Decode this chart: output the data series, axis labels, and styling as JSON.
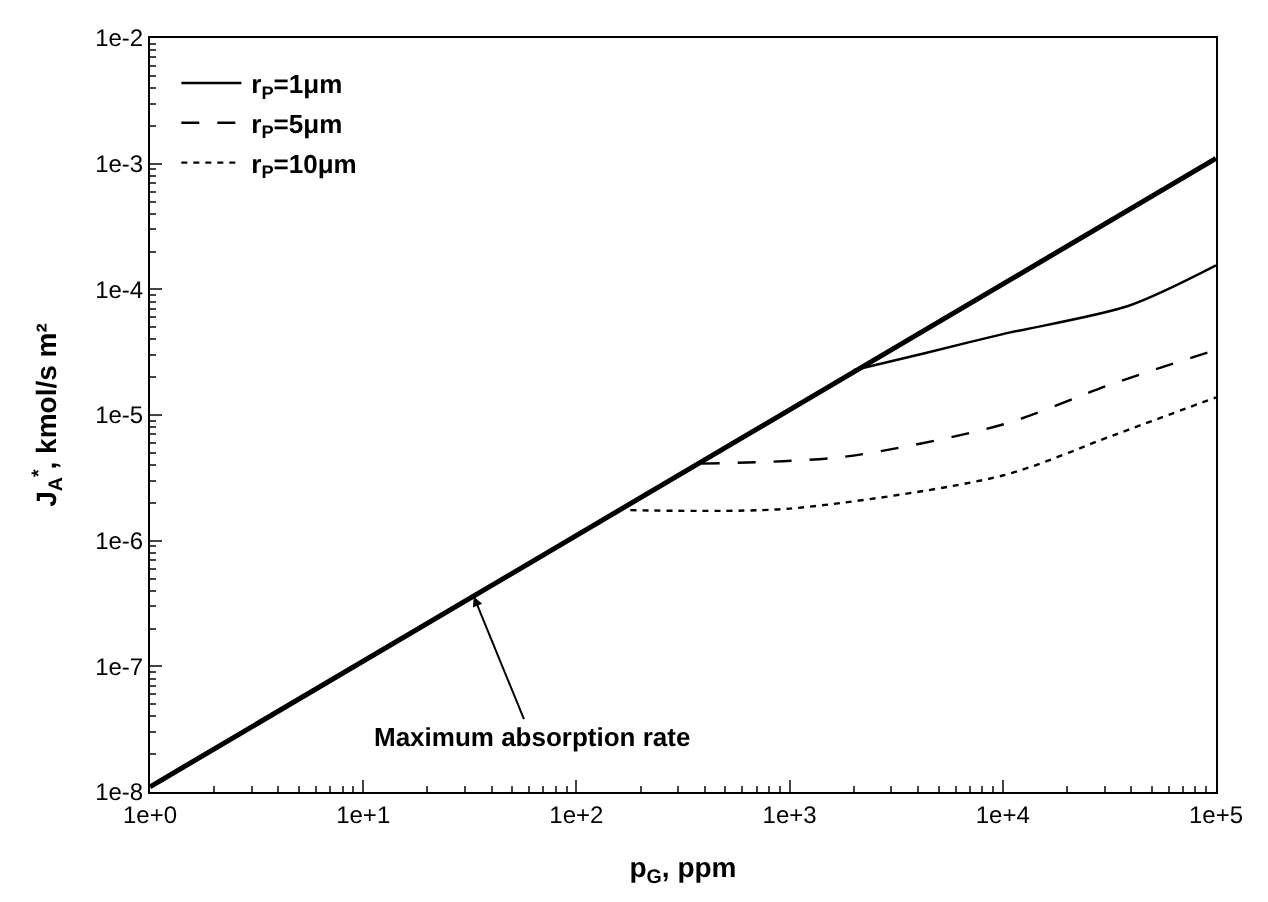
{
  "chart_data": {
    "type": "line",
    "xlabel": "p$_{G}$, ppm",
    "ylabel": "J$_{A}$$^{*}$, kmol/s m²",
    "log": "xy",
    "legend": "top left",
    "marker": "none",
    "xlim": [
      1,
      100000
    ],
    "ylim": [
      1e-08,
      0.01
    ],
    "xticks": [
      {
        "value": 1,
        "label": "1e+0"
      },
      {
        "value": 10,
        "label": "1e+1"
      },
      {
        "value": 100,
        "label": "1e+2"
      },
      {
        "value": 1000,
        "label": "1e+3"
      },
      {
        "value": 10000,
        "label": "1e+4"
      },
      {
        "value": 100000,
        "label": "1e+5"
      }
    ],
    "yticks": [
      {
        "value": 1e-08,
        "label": "1e-8"
      },
      {
        "value": 1e-07,
        "label": "1e-7"
      },
      {
        "value": 1e-06,
        "label": "1e-6"
      },
      {
        "value": 1e-05,
        "label": "1e-5"
      },
      {
        "value": 0.0001,
        "label": "1e-4"
      },
      {
        "value": 0.001,
        "label": "1e-3"
      },
      {
        "value": 0.01,
        "label": "1e-2"
      }
    ],
    "series": [
      {
        "color": "#000000",
        "line_style": "solid",
        "x": [
          1,
          100000
        ],
        "values": [
          1.1e-08,
          0.0011
        ]
      },
      {
        "name": "r$_{P}$=1μm",
        "color": "#000000",
        "line_style": "solid",
        "x": [
          1990,
          4300,
          10000,
          39000,
          100000
        ],
        "values": [
          2.27e-05,
          3.1e-05,
          4.4e-05,
          7.4e-05,
          0.000155
        ]
      },
      {
        "name": "r$_{P}$=5μm",
        "color": "#000000",
        "line_style": "dashed",
        "x": [
          386,
          1800,
          10000,
          33000,
          100000
        ],
        "values": [
          4.1e-06,
          4.65e-06,
          8.4e-06,
          1.78e-05,
          3.3e-05
        ]
      },
      {
        "name": "r$_{P}$=10μm",
        "color": "#000000",
        "line_style": "dotted",
        "x": [
          179,
          1000,
          10000,
          33000,
          100000
        ],
        "values": [
          1.75e-06,
          1.8e-06,
          3.3e-06,
          6.9e-06,
          1.38e-05
        ]
      }
    ],
    "annotations": [
      {
        "text": "Maximum absorption rate",
        "x": 33,
        "y": 3.6e-07
      }
    ]
  }
}
